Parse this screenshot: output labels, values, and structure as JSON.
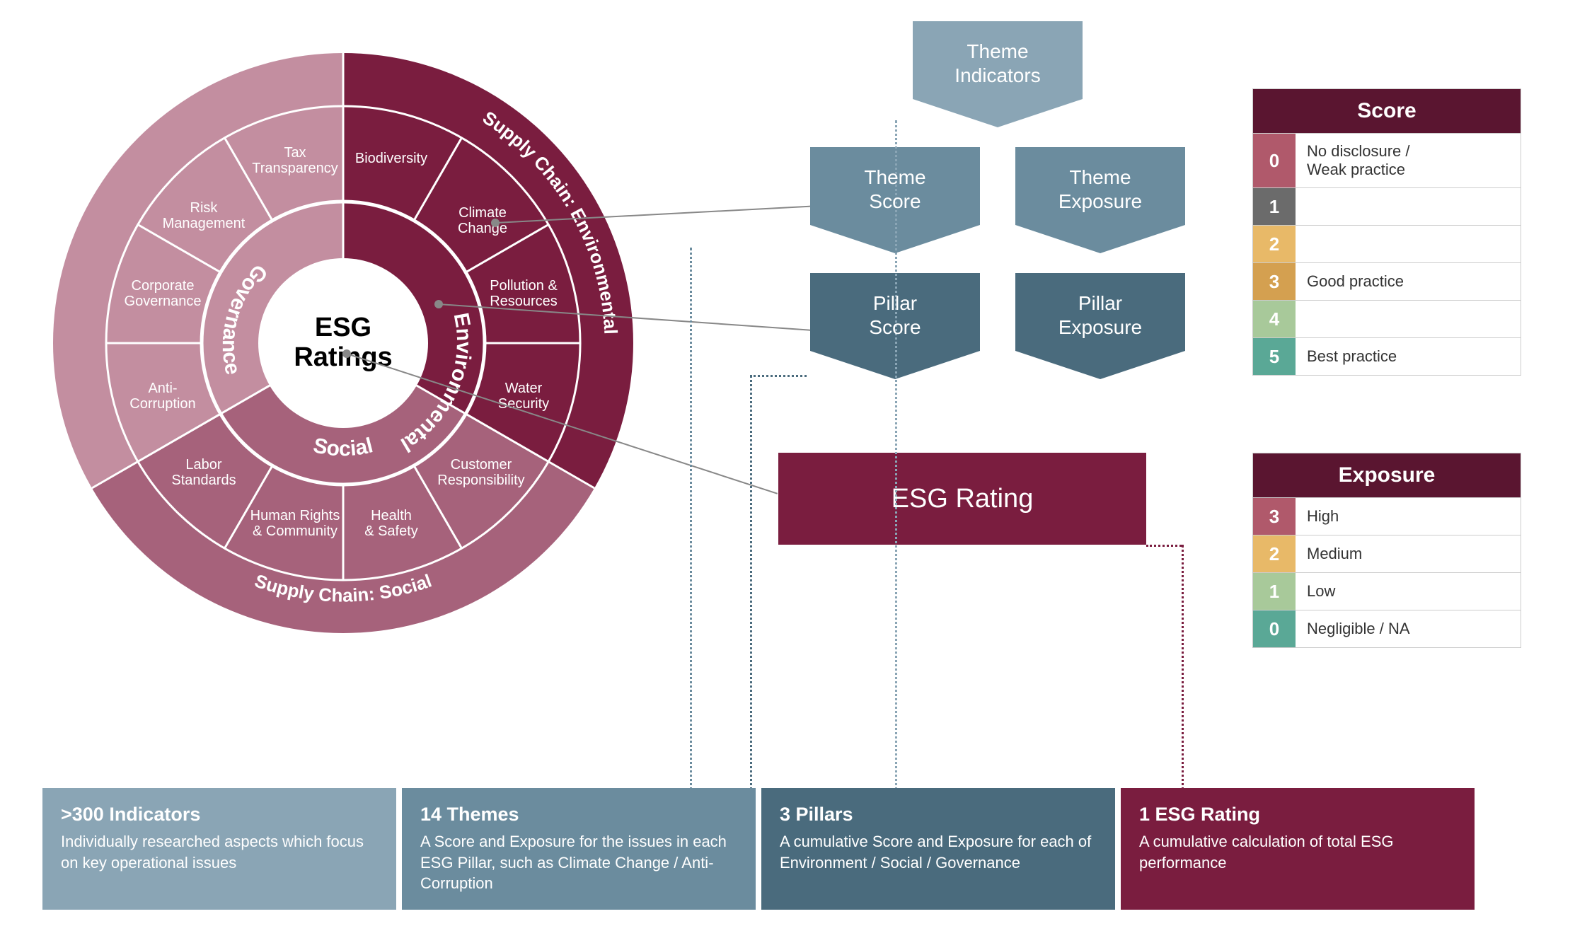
{
  "colors": {
    "environmental": "#7a1d3f",
    "social": "#a6627b",
    "governance": "#c38ea0",
    "pentagon_light": "#8aa5b5",
    "pentagon_mid": "#6b8c9e",
    "pentagon_dark": "#4a6b7d",
    "esg_rating": "#7a1d3f",
    "legend_header": "#5a1530",
    "score_0": "#b0596b",
    "score_1": "#6b6b6b",
    "score_2": "#e8b968",
    "score_3": "#d4a050",
    "score_4": "#a8c99a",
    "score_5": "#5aa896",
    "exposure_3": "#b0596b",
    "exposure_2": "#e8b968",
    "exposure_1": "#a8c99a",
    "exposure_0": "#5aa896",
    "bottom_1": "#8aa5b5",
    "bottom_2": "#6b8c9e",
    "bottom_3": "#4a6b7d",
    "bottom_4": "#7a1d3f",
    "white": "#ffffff",
    "stroke": "#ffffff"
  },
  "wheel": {
    "center_line1": "ESG",
    "center_line2": "Ratings",
    "pillars": {
      "environmental": "Environmental",
      "social": "Social",
      "governance": "Governance"
    },
    "outer_labels": {
      "supply_env": "Supply Chain: Environmental",
      "supply_social": "Supply Chain: Social"
    },
    "themes": {
      "biodiversity": "Biodiversity",
      "climate": "Climate\nChange",
      "pollution": "Pollution &\nResources",
      "water": "Water\nSecurity",
      "customer": "Customer\nResponsibility",
      "health": "Health\n& Safety",
      "human_rights": "Human Rights\n& Community",
      "labor": "Labor\nStandards",
      "anti_corruption": "Anti-\nCorruption",
      "corporate_gov": "Corporate\nGovernance",
      "risk_mgmt": "Risk\nManagement",
      "tax": "Tax\nTransparency"
    }
  },
  "flow": {
    "theme_indicators": "Theme\nIndicators",
    "theme_score": "Theme\nScore",
    "theme_exposure": "Theme\nExposure",
    "pillar_score": "Pillar\nScore",
    "pillar_exposure": "Pillar\nExposure",
    "esg_rating": "ESG Rating"
  },
  "score_legend": {
    "title": "Score",
    "rows": [
      {
        "num": "0",
        "label": "No disclosure /\nWeak practice"
      },
      {
        "num": "1",
        "label": ""
      },
      {
        "num": "2",
        "label": ""
      },
      {
        "num": "3",
        "label": "Good practice"
      },
      {
        "num": "4",
        "label": ""
      },
      {
        "num": "5",
        "label": "Best practice"
      }
    ]
  },
  "exposure_legend": {
    "title": "Exposure",
    "rows": [
      {
        "num": "3",
        "label": "High"
      },
      {
        "num": "2",
        "label": "Medium"
      },
      {
        "num": "1",
        "label": "Low"
      },
      {
        "num": "0",
        "label": "Negligible / NA"
      }
    ]
  },
  "bottom": [
    {
      "title": ">300 Indicators",
      "desc": "Individually researched aspects which focus on key operational issues"
    },
    {
      "title": "14 Themes",
      "desc": "A Score and Exposure for the issues in each ESG Pillar, such as Climate Change / Anti-Corruption"
    },
    {
      "title": "3 Pillars",
      "desc": "A cumulative Score and Exposure for each of Environment / Social / Governance"
    },
    {
      "title": "1 ESG Rating",
      "desc": "A cumulative calculation of total ESG performance"
    }
  ]
}
